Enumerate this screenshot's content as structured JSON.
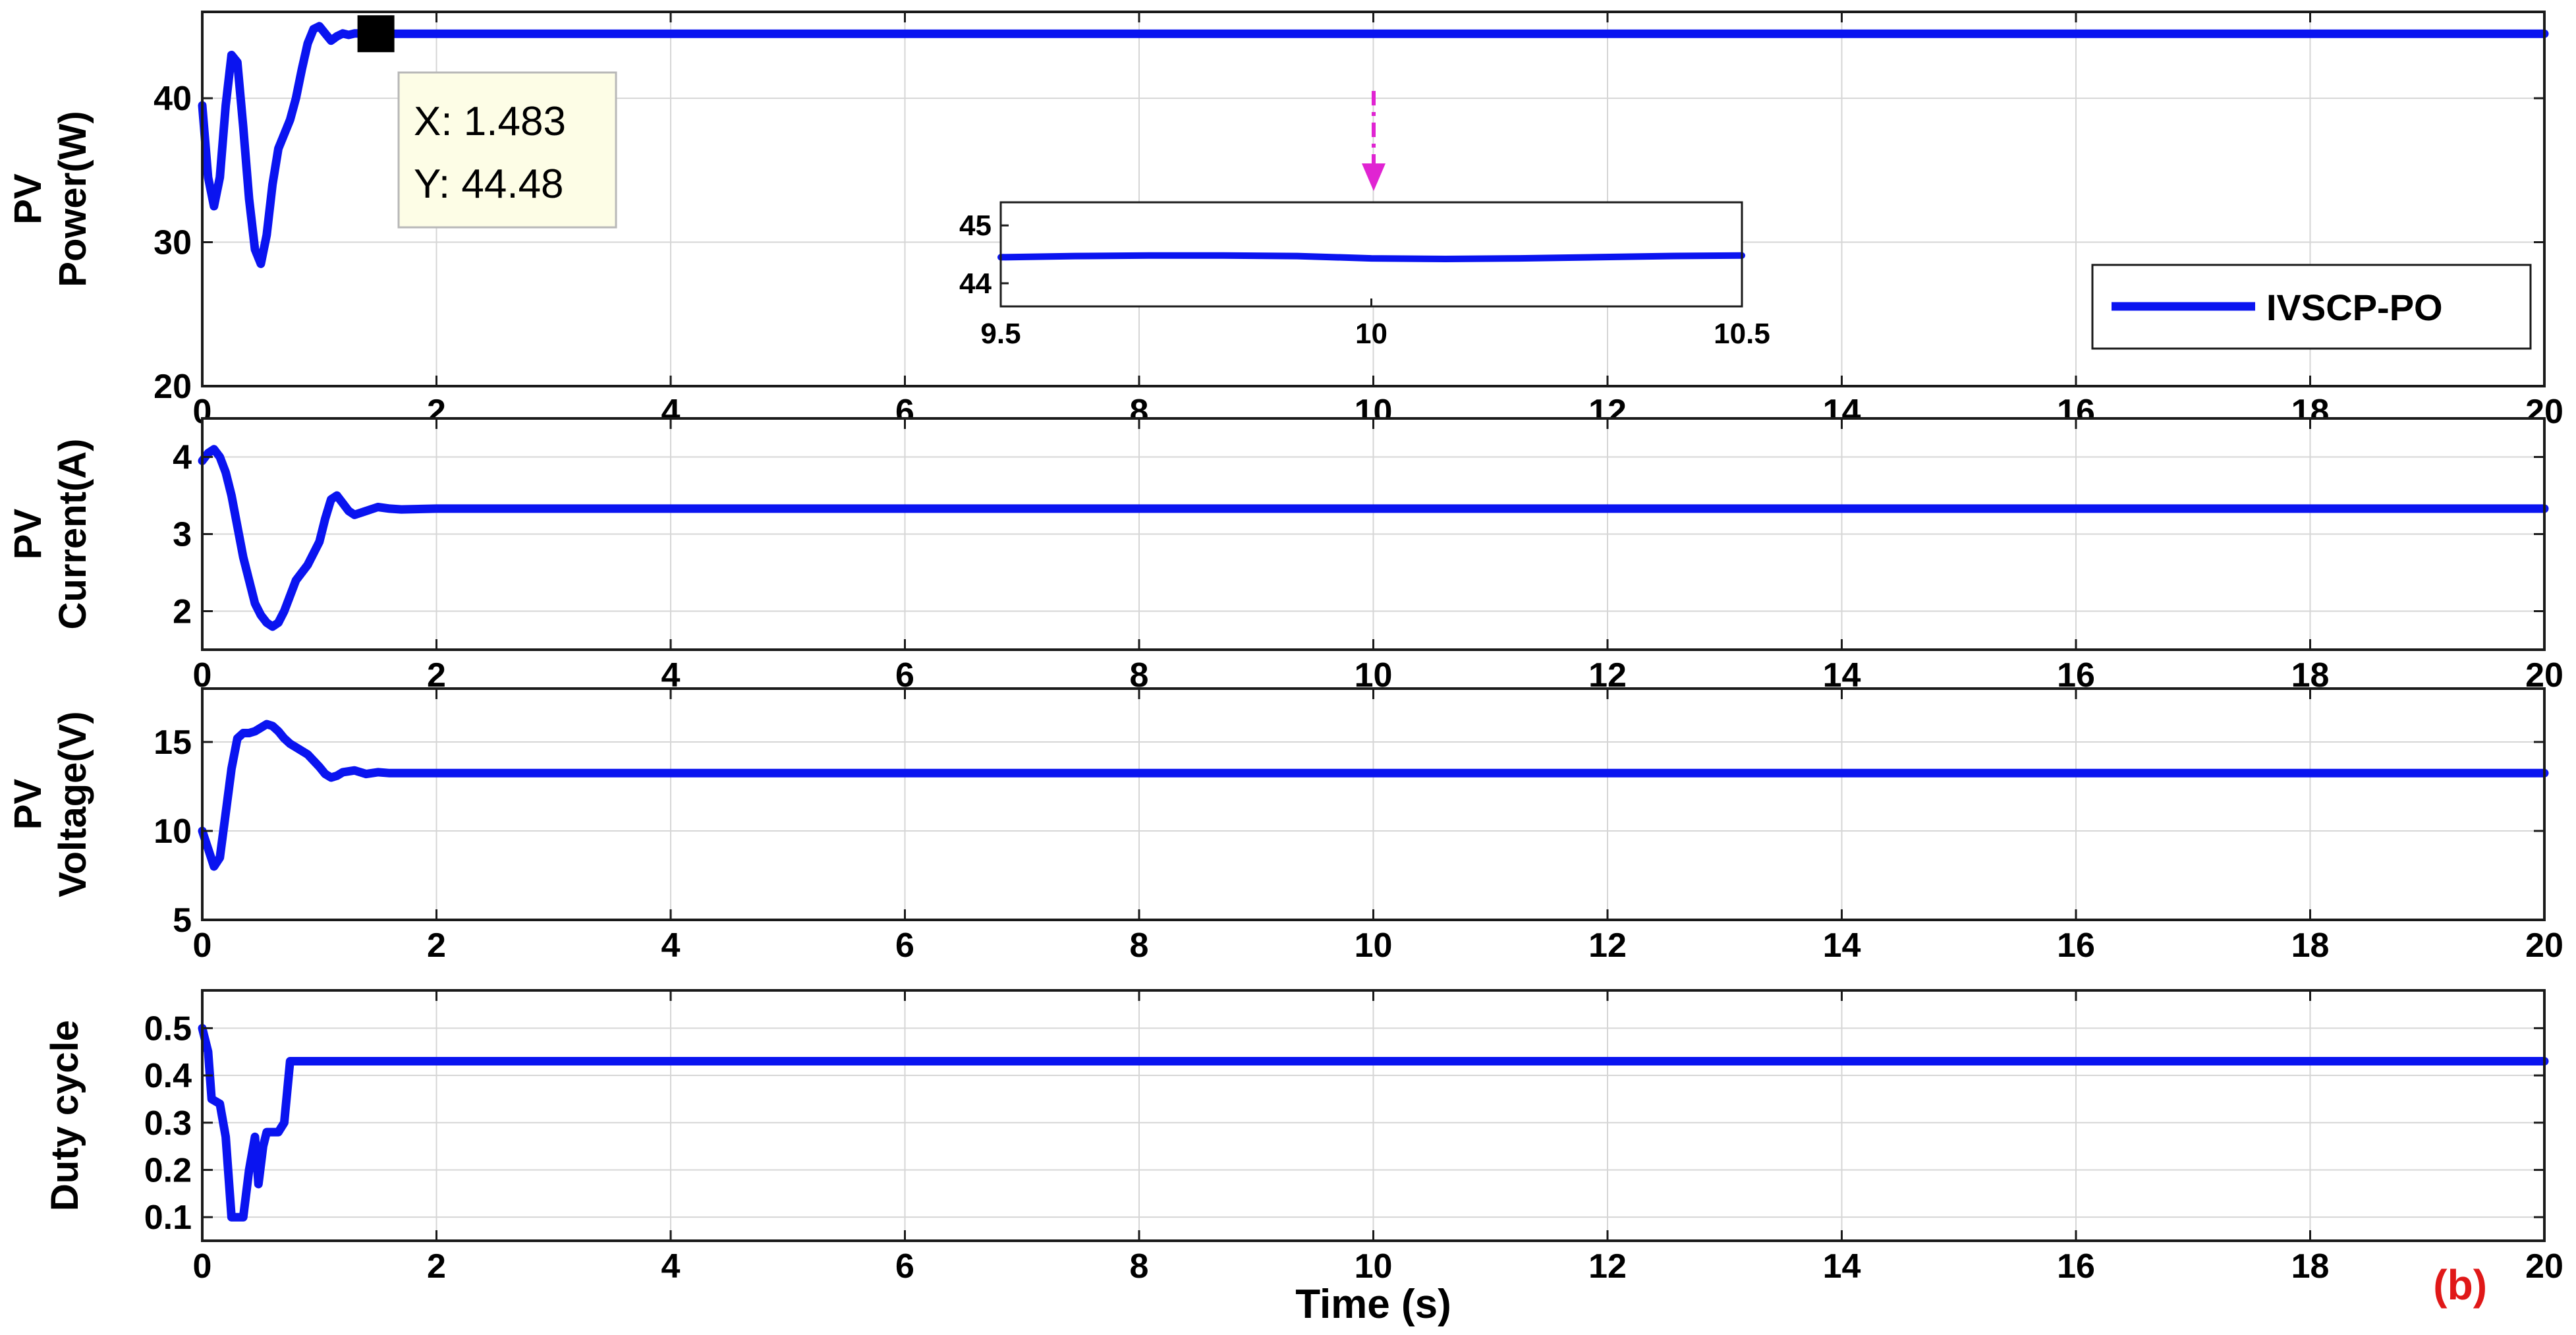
{
  "chart_data": [
    {
      "type": "line",
      "id": "power",
      "ylabel": [
        "PV",
        "Power(W)"
      ],
      "xlim": [
        0,
        20
      ],
      "ylim": [
        20,
        46
      ],
      "yticks": [
        20,
        30,
        40
      ],
      "xticks": [
        0,
        2,
        4,
        6,
        8,
        10,
        12,
        14,
        16,
        18,
        20
      ],
      "grid": true,
      "series": [
        {
          "name": "IVSCP-PO",
          "x": [
            0,
            0.05,
            0.1,
            0.15,
            0.2,
            0.25,
            0.3,
            0.35,
            0.4,
            0.45,
            0.5,
            0.55,
            0.6,
            0.65,
            0.7,
            0.75,
            0.8,
            0.85,
            0.9,
            0.95,
            1.0,
            1.05,
            1.1,
            1.15,
            1.2,
            1.25,
            1.3,
            1.35,
            1.4,
            1.483,
            1.6,
            2,
            4,
            6,
            8,
            10,
            12,
            14,
            16,
            18,
            20
          ],
          "values": [
            39.5,
            34.5,
            32.5,
            34.5,
            39.5,
            43.0,
            42.5,
            38.0,
            33.0,
            29.5,
            28.5,
            30.5,
            34.0,
            36.5,
            37.5,
            38.5,
            40.0,
            42.0,
            43.8,
            44.8,
            45.0,
            44.5,
            44.0,
            44.3,
            44.5,
            44.4,
            44.5,
            44.5,
            44.48,
            44.48,
            44.48,
            44.48,
            44.48,
            44.48,
            44.48,
            44.48,
            44.48,
            44.48,
            44.48,
            44.48,
            44.48
          ]
        }
      ],
      "legend": {
        "position": "bottom-right",
        "entries": [
          "IVSCP-PO"
        ]
      },
      "datatip": {
        "x_label": "X: 1.483",
        "y_label": "Y: 44.48",
        "x": 1.483,
        "y": 44.48
      },
      "inset": {
        "xlim": [
          9.5,
          10.5
        ],
        "ylim": [
          43.6,
          45.4
        ],
        "xticks": [
          9.5,
          10,
          10.5
        ],
        "yticks": [
          44,
          45
        ],
        "x": [
          9.5,
          9.6,
          9.7,
          9.8,
          9.9,
          10.0,
          10.1,
          10.2,
          10.3,
          10.4,
          10.5
        ],
        "values": [
          44.45,
          44.47,
          44.48,
          44.48,
          44.47,
          44.43,
          44.42,
          44.43,
          44.45,
          44.47,
          44.48
        ]
      }
    },
    {
      "type": "line",
      "id": "current",
      "ylabel": [
        "PV",
        "Current(A)"
      ],
      "xlim": [
        0,
        20
      ],
      "ylim": [
        1.5,
        4.5
      ],
      "yticks": [
        2,
        3,
        4
      ],
      "xticks": [
        0,
        2,
        4,
        6,
        8,
        10,
        12,
        14,
        16,
        18,
        20
      ],
      "grid": true,
      "series": [
        {
          "name": "IVSCP-PO",
          "x": [
            0,
            0.05,
            0.1,
            0.15,
            0.2,
            0.25,
            0.3,
            0.35,
            0.4,
            0.45,
            0.5,
            0.55,
            0.6,
            0.65,
            0.7,
            0.75,
            0.8,
            0.9,
            1.0,
            1.05,
            1.1,
            1.15,
            1.2,
            1.25,
            1.3,
            1.4,
            1.5,
            1.6,
            1.7,
            2,
            4,
            6,
            8,
            10,
            12,
            14,
            16,
            18,
            20
          ],
          "values": [
            3.95,
            4.05,
            4.1,
            4.0,
            3.8,
            3.5,
            3.1,
            2.7,
            2.4,
            2.1,
            1.95,
            1.85,
            1.8,
            1.85,
            2.0,
            2.2,
            2.4,
            2.6,
            2.9,
            3.2,
            3.45,
            3.5,
            3.4,
            3.3,
            3.25,
            3.3,
            3.35,
            3.33,
            3.32,
            3.33,
            3.33,
            3.33,
            3.33,
            3.33,
            3.33,
            3.33,
            3.33,
            3.33,
            3.33
          ]
        }
      ]
    },
    {
      "type": "line",
      "id": "voltage",
      "ylabel": [
        "PV",
        "Voltage(V)"
      ],
      "xlim": [
        0,
        20
      ],
      "ylim": [
        5,
        18
      ],
      "yticks": [
        5,
        10,
        15
      ],
      "xticks": [
        0,
        2,
        4,
        6,
        8,
        10,
        12,
        14,
        16,
        18,
        20
      ],
      "grid": true,
      "series": [
        {
          "name": "IVSCP-PO",
          "x": [
            0,
            0.05,
            0.1,
            0.15,
            0.2,
            0.25,
            0.3,
            0.35,
            0.4,
            0.45,
            0.5,
            0.55,
            0.6,
            0.65,
            0.7,
            0.75,
            0.8,
            0.9,
            1.0,
            1.05,
            1.1,
            1.15,
            1.2,
            1.3,
            1.4,
            1.5,
            1.6,
            2,
            4,
            6,
            8,
            10,
            12,
            14,
            16,
            18,
            20
          ],
          "values": [
            10.0,
            9.0,
            8.0,
            8.5,
            11.0,
            13.5,
            15.2,
            15.5,
            15.5,
            15.6,
            15.8,
            16.0,
            15.9,
            15.6,
            15.2,
            14.9,
            14.7,
            14.3,
            13.6,
            13.2,
            13.0,
            13.1,
            13.3,
            13.4,
            13.2,
            13.3,
            13.25,
            13.25,
            13.25,
            13.25,
            13.25,
            13.25,
            13.25,
            13.25,
            13.25,
            13.25,
            13.25
          ]
        }
      ]
    },
    {
      "type": "line",
      "id": "duty",
      "ylabel": [
        "Duty cycle"
      ],
      "xlim": [
        0,
        20
      ],
      "ylim": [
        0.05,
        0.58
      ],
      "yticks": [
        0.1,
        0.2,
        0.3,
        0.4,
        0.5
      ],
      "xticks": [
        0,
        2,
        4,
        6,
        8,
        10,
        12,
        14,
        16,
        18,
        20
      ],
      "xlabel": "Time (s)",
      "grid": true,
      "series": [
        {
          "name": "IVSCP-PO",
          "x": [
            0,
            0.05,
            0.08,
            0.15,
            0.2,
            0.25,
            0.3,
            0.35,
            0.4,
            0.45,
            0.48,
            0.52,
            0.55,
            0.58,
            0.6,
            0.65,
            0.7,
            0.75,
            0.8,
            2,
            4,
            6,
            8,
            10,
            12,
            14,
            16,
            18,
            20
          ],
          "values": [
            0.5,
            0.45,
            0.35,
            0.34,
            0.27,
            0.1,
            0.1,
            0.1,
            0.2,
            0.27,
            0.17,
            0.25,
            0.28,
            0.28,
            0.28,
            0.28,
            0.3,
            0.43,
            0.43,
            0.43,
            0.43,
            0.43,
            0.43,
            0.43,
            0.43,
            0.43,
            0.43,
            0.43,
            0.43
          ]
        }
      ]
    }
  ],
  "figure_tag": "(b)",
  "colors": {
    "series": "#0a14f0",
    "annotation_arrow": "#e024d2",
    "figure_tag": "#e01818",
    "tip_fill": "#fdfde6",
    "axes": "#1a1a1a",
    "grid": "#d6d6d6"
  }
}
